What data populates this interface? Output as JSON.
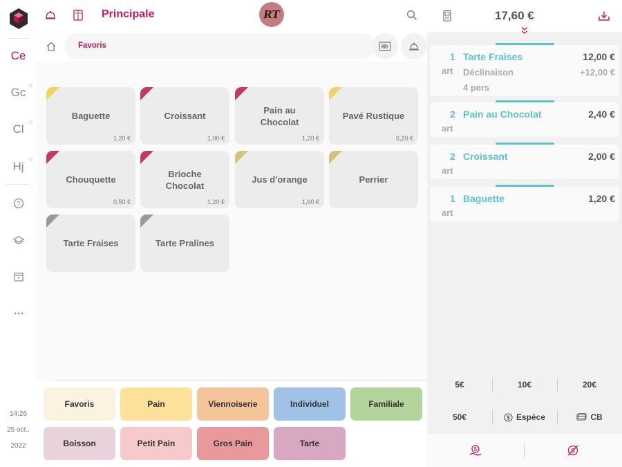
{
  "rail": {
    "items": [
      {
        "label": "Ce",
        "active": true
      },
      {
        "label": "Gc",
        "active": false
      },
      {
        "label": "Cl",
        "active": false
      },
      {
        "label": "Hj",
        "active": false
      }
    ],
    "icons": [
      "help-icon",
      "layers-icon",
      "calendar-icon",
      "more-icon"
    ],
    "time": "14:26",
    "date_day": "25 oct..",
    "date_year": "2022"
  },
  "topbar": {
    "title": "Principale",
    "avatar_initials": "RT",
    "icons": [
      "cloche-icon",
      "menu-book-icon",
      "search-icon",
      "terminal-icon"
    ]
  },
  "breadcrumb": {
    "label": "Favoris"
  },
  "products": [
    {
      "name": "Baguette",
      "price": "1,20 €",
      "color": "#f0d265"
    },
    {
      "name": "Croissant",
      "price": "1,00 €",
      "color": "#c33a64"
    },
    {
      "name": "Pain au Chocolat",
      "price": "1,20 €",
      "color": "#c33a64"
    },
    {
      "name": "Pavé Rustique",
      "price": "6,20 €",
      "color": "#f0d265"
    },
    {
      "name": "Chouquette",
      "price": "0,50 €",
      "color": "#c33a64"
    },
    {
      "name": "Brioche Chocolat",
      "price": "1,20 €",
      "color": "#c33a64"
    },
    {
      "name": "Jus d'orange",
      "price": "1,60 €",
      "color": "#d4c27a"
    },
    {
      "name": "Perrier",
      "price": "",
      "color": "#d4c27a"
    },
    {
      "name": "Tarte Fraises",
      "price": "",
      "color": "#9a9a9a"
    },
    {
      "name": "Tarte Pralines",
      "price": "",
      "color": "#9a9a9a"
    }
  ],
  "categories": [
    {
      "label": "Favoris",
      "color": "#fbf3df"
    },
    {
      "label": "Pain",
      "color": "#fbe19a"
    },
    {
      "label": "Viennoiserie",
      "color": "#f4c49a"
    },
    {
      "label": "Individuel",
      "color": "#9fc2e6"
    },
    {
      "label": "Familiale",
      "color": "#b3d59c"
    },
    {
      "label": "Boisson",
      "color": "#e8d2dc"
    },
    {
      "label": "Petit Pain",
      "color": "#f6caca"
    },
    {
      "label": "Gros Pain",
      "color": "#e8999c"
    },
    {
      "label": "Tarte",
      "color": "#d8a7c1"
    }
  ],
  "order": {
    "total": "17,60 €",
    "lines": [
      {
        "qty": "1",
        "unit": "art",
        "name": "Tarte Fraises",
        "price": "12,00 €",
        "sub_name": "Déclinaison",
        "sub_price": "+12,00 €",
        "sub_detail": "4 pers"
      },
      {
        "qty": "2",
        "unit": "art",
        "name": "Pain au Chocolat",
        "price": "2,40 €"
      },
      {
        "qty": "2",
        "unit": "art",
        "name": "Croissant",
        "price": "2,00 €"
      },
      {
        "qty": "1",
        "unit": "art",
        "name": "Baguette",
        "price": "1,20 €"
      }
    ]
  },
  "payment": {
    "quick_amounts": [
      "5€",
      "10€",
      "20€"
    ],
    "amount_50": "50€",
    "cash_label": "Espèce",
    "card_label": "CB"
  },
  "colors": {
    "accent": "#c0185a",
    "teal": "#5bc3cd"
  }
}
